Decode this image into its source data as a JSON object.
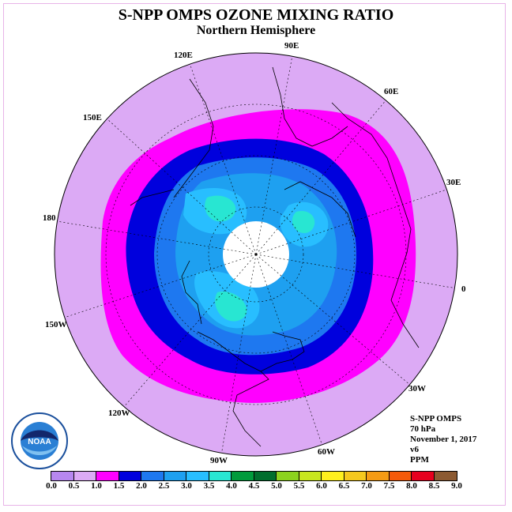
{
  "header": {
    "title": "S-NPP OMPS OZONE MIXING RATIO",
    "subtitle": "Northern Hemisphere"
  },
  "longitude_labels": {
    "e90": "90E",
    "e60": "60E",
    "e30": "30E",
    "zero": "0",
    "w30": "30W",
    "w60": "60W",
    "w90": "90W",
    "w120": "120W",
    "w150": "150W",
    "d180": "180",
    "e150": "150E",
    "e120": "120E"
  },
  "info": {
    "instrument": "S-NPP OMPS",
    "pressure": "70 hPa",
    "date": "November 1, 2017",
    "version": "v6",
    "unit": "PPM"
  },
  "colorbar": {
    "ticks": [
      "0.0",
      "0.5",
      "1.0",
      "1.5",
      "2.0",
      "2.5",
      "3.0",
      "3.5",
      "4.0",
      "4.5",
      "5.0",
      "5.5",
      "6.0",
      "6.5",
      "7.0",
      "7.5",
      "8.0",
      "8.5",
      "9.0"
    ],
    "colors": [
      "#b787f0",
      "#dcaaf5",
      "#ff00ff",
      "#0000dd",
      "#1e78f0",
      "#1ea0f0",
      "#28beff",
      "#28e6d2",
      "#009b3c",
      "#006e2d",
      "#8cd21e",
      "#c8e61e",
      "#fff01e",
      "#f5c81e",
      "#f59b14",
      "#f55a0a",
      "#e6001e",
      "#8c5a32"
    ]
  },
  "map_colors": {
    "background_disk": "#dcaaf5",
    "band_magenta": "#ff00ff",
    "band_darkblue": "#0000dd",
    "band_blue": "#1e78f0",
    "band_midblue": "#1ea0f0",
    "band_lightblue": "#28beff",
    "band_cyan": "#28e6d2",
    "polar_night": "#ffffff"
  },
  "logo": {
    "text": "NOAA"
  }
}
